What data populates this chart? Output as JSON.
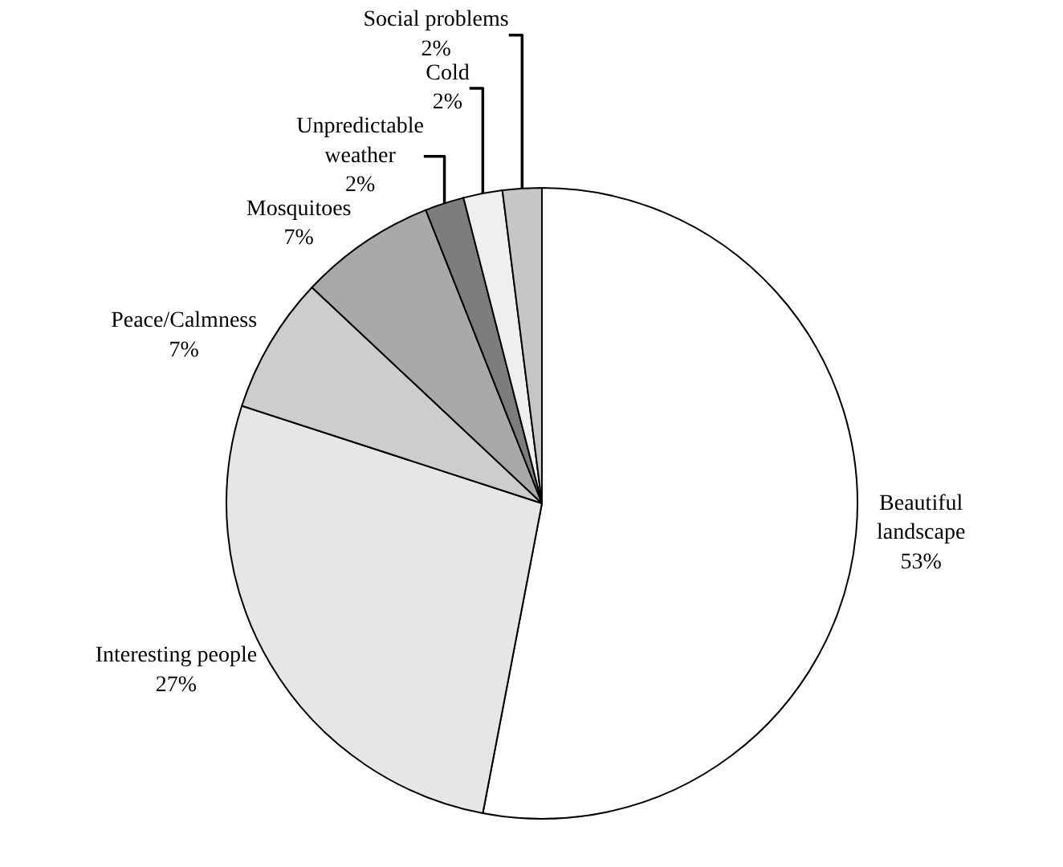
{
  "chart_data": {
    "type": "pie",
    "categories": [
      "Beautiful landscape",
      "Interesting people",
      "Peace/Calmness",
      "Mosquitoes",
      "Unpredictable weather",
      "Cold",
      "Social problems"
    ],
    "values": [
      53,
      27,
      7,
      7,
      2,
      2,
      2
    ],
    "value_labels": [
      "53%",
      "27%",
      "7%",
      "7%",
      "2%",
      "2%",
      "2%"
    ],
    "colors": [
      "#ffffff",
      "#e6e6e6",
      "#cdcdcd",
      "#a9a9a9",
      "#7d7d7d",
      "#efefef",
      "#c6c6c6"
    ],
    "legend": false
  }
}
